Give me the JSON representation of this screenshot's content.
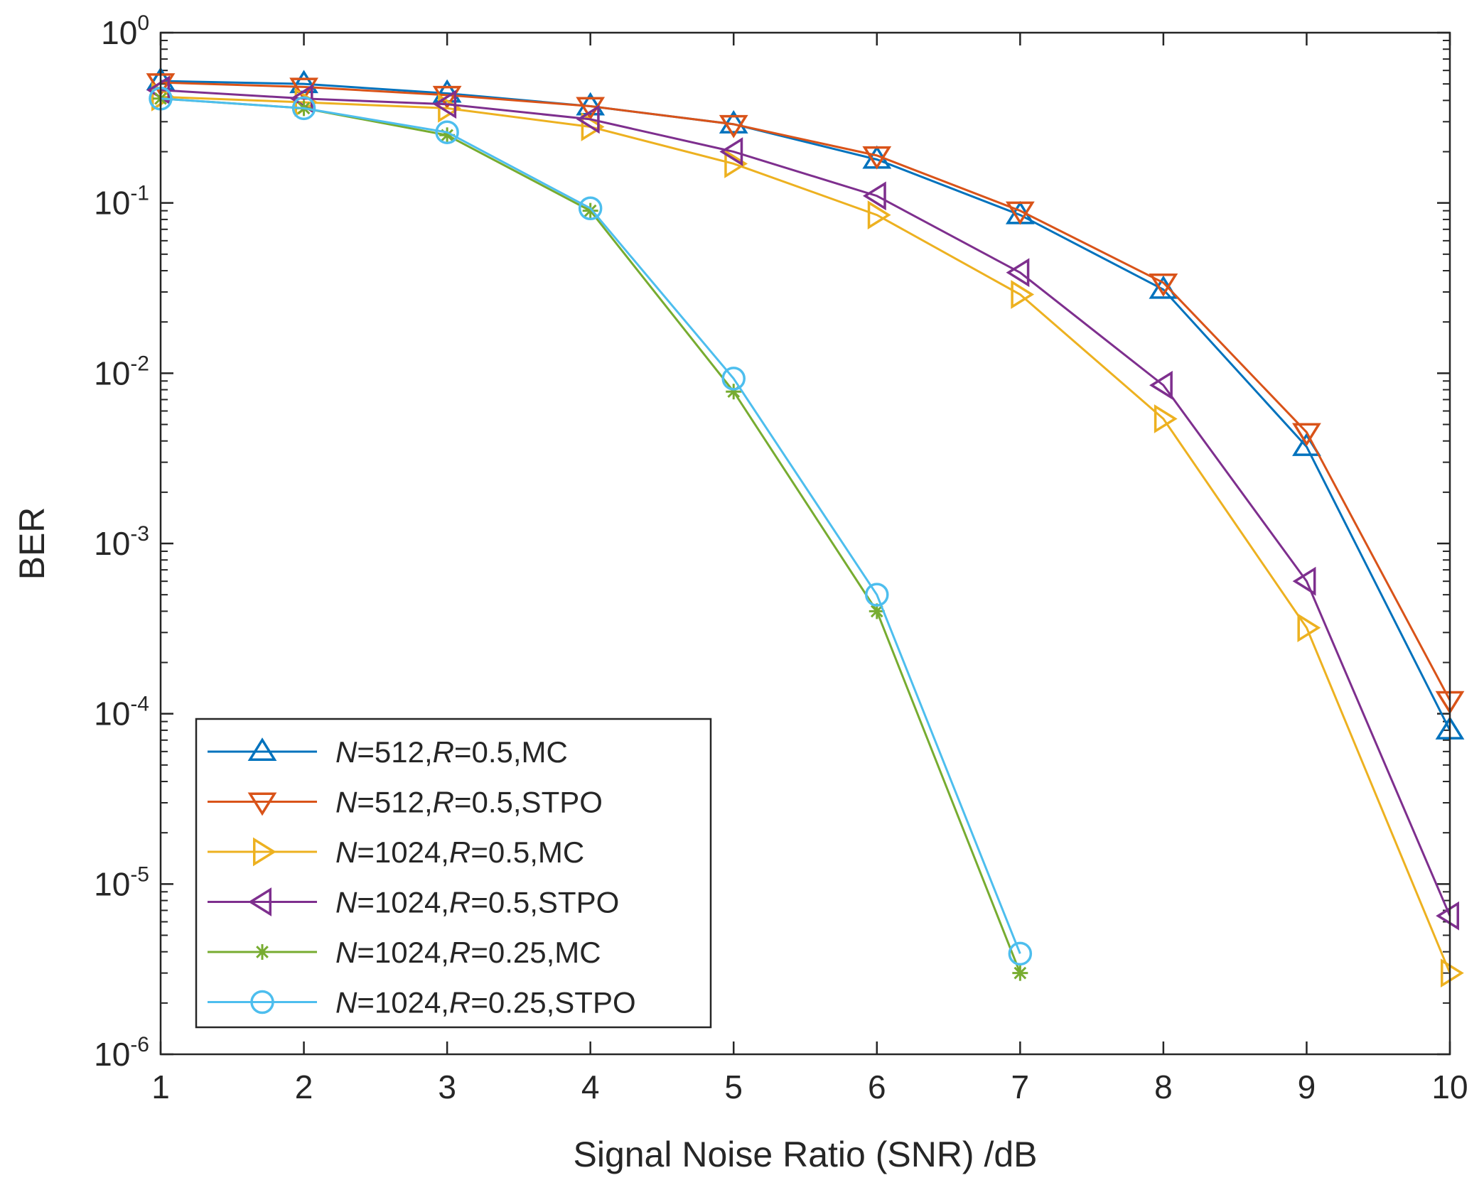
{
  "chart_data": {
    "type": "line",
    "title": "",
    "xlabel": "Signal Noise Ratio (SNR) /dB",
    "ylabel": "BER",
    "xlim": [
      1,
      10
    ],
    "ylim": [
      1e-06,
      1
    ],
    "yscale": "log",
    "grid": false,
    "legend_position": "bottom-left",
    "x_ticks": [
      {
        "value": 1,
        "label": "1"
      },
      {
        "value": 2,
        "label": "2"
      },
      {
        "value": 3,
        "label": "3"
      },
      {
        "value": 4,
        "label": "4"
      },
      {
        "value": 5,
        "label": "5"
      },
      {
        "value": 6,
        "label": "6"
      },
      {
        "value": 7,
        "label": "7"
      },
      {
        "value": 8,
        "label": "8"
      },
      {
        "value": 9,
        "label": "9"
      },
      {
        "value": 10,
        "label": "10"
      }
    ],
    "y_ticks": [
      {
        "value": 1,
        "base": "10",
        "exp": "0"
      },
      {
        "value": 0.1,
        "base": "10",
        "exp": "-1"
      },
      {
        "value": 0.01,
        "base": "10",
        "exp": "-2"
      },
      {
        "value": 0.001,
        "base": "10",
        "exp": "-3"
      },
      {
        "value": 0.0001,
        "base": "10",
        "exp": "-4"
      },
      {
        "value": 1e-05,
        "base": "10",
        "exp": "-5"
      },
      {
        "value": 1e-06,
        "base": "10",
        "exp": "-6"
      }
    ],
    "series": [
      {
        "name": "N=512,R=0.5,MC",
        "legend": {
          "n_label": "N",
          "n_value": "=512,",
          "r_label": "R",
          "r_value": "=0.5,MC"
        },
        "color": "#0072BD",
        "marker": "triangle-up",
        "x": [
          1,
          2,
          3,
          4,
          5,
          6,
          7,
          8,
          9,
          10
        ],
        "y": [
          0.52,
          0.5,
          0.44,
          0.37,
          0.29,
          0.18,
          0.085,
          0.031,
          0.0037,
          8e-05
        ]
      },
      {
        "name": "N=512,R=0.5,STPO",
        "legend": {
          "n_label": "N",
          "n_value": "=512,",
          "r_label": "R",
          "r_value": "=0.5,STPO"
        },
        "color": "#D95319",
        "marker": "triangle-down",
        "x": [
          1,
          2,
          3,
          4,
          5,
          6,
          7,
          8,
          9,
          10
        ],
        "y": [
          0.51,
          0.48,
          0.43,
          0.37,
          0.29,
          0.19,
          0.09,
          0.034,
          0.0045,
          0.00012
        ]
      },
      {
        "name": "N=1024,R=0.5,MC",
        "legend": {
          "n_label": "N",
          "n_value": "=1024,",
          "r_label": "R",
          "r_value": "=0.5,MC"
        },
        "color": "#EDB120",
        "marker": "triangle-right",
        "x": [
          1,
          2,
          3,
          4,
          5,
          6,
          7,
          8,
          9,
          10
        ],
        "y": [
          0.42,
          0.39,
          0.36,
          0.28,
          0.17,
          0.085,
          0.029,
          0.0054,
          0.00032,
          3e-06
        ]
      },
      {
        "name": "N=1024,R=0.5,STPO",
        "legend": {
          "n_label": "N",
          "n_value": "=1024,",
          "r_label": "R",
          "r_value": "=0.5,STPO"
        },
        "color": "#7E2F8E",
        "marker": "triangle-left",
        "x": [
          1,
          2,
          3,
          4,
          5,
          6,
          7,
          8,
          9,
          10
        ],
        "y": [
          0.46,
          0.41,
          0.38,
          0.31,
          0.2,
          0.11,
          0.039,
          0.0085,
          0.0006,
          6.5e-06
        ]
      },
      {
        "name": "N=1024,R=0.25,MC",
        "legend": {
          "n_label": "N",
          "n_value": "=1024,",
          "r_label": "R",
          "r_value": "=0.25,MC"
        },
        "color": "#77AC30",
        "marker": "asterisk",
        "x": [
          1,
          2,
          3,
          4,
          5,
          6,
          7
        ],
        "y": [
          0.41,
          0.36,
          0.25,
          0.09,
          0.0078,
          0.0004,
          3e-06
        ]
      },
      {
        "name": "N=1024,R=0.25,STPO",
        "legend": {
          "n_label": "N",
          "n_value": "=1024,",
          "r_label": "R",
          "r_value": "=0.25,STPO"
        },
        "color": "#4DBEEE",
        "marker": "circle",
        "x": [
          1,
          2,
          3,
          4,
          5,
          6,
          7
        ],
        "y": [
          0.41,
          0.36,
          0.26,
          0.093,
          0.0093,
          0.0005,
          3.9e-06
        ]
      }
    ]
  }
}
